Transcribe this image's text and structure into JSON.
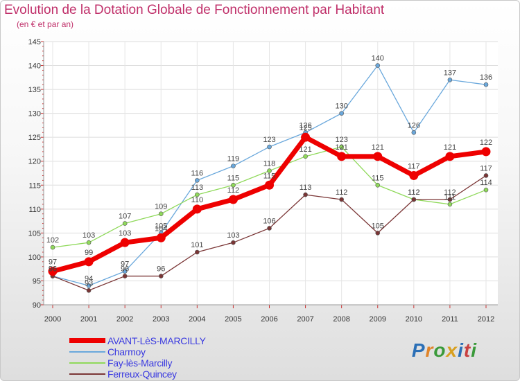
{
  "title": "Evolution de la Dotation Globale de Fonctionnement par Habitant",
  "subtitle": "(en € et par an)",
  "logo": {
    "p": "P",
    "r": "r",
    "o": "o",
    "x": "x",
    "i": "i",
    "t": "t",
    "i2": "i"
  },
  "colors": {
    "title": "#c0306a",
    "legend_text": "#3a3ae0"
  },
  "chart_data": {
    "type": "line",
    "title": "Evolution de la Dotation Globale de Fonctionnement par Habitant",
    "subtitle": "(en € et par an)",
    "xlabel": "",
    "ylabel": "",
    "x": [
      "2000",
      "2001",
      "2002",
      "2003",
      "2004",
      "2005",
      "2006",
      "2007",
      "2008",
      "2009",
      "2010",
      "2011",
      "2012"
    ],
    "ylim": [
      90,
      145
    ],
    "yticks": [
      90,
      95,
      100,
      105,
      110,
      115,
      120,
      125,
      130,
      135,
      140,
      145
    ],
    "grid": true,
    "legend_position": "bottom-left",
    "series": [
      {
        "name": "AVANT-LèS-MARCILLY",
        "color": "#ee0000",
        "emphasis": true,
        "values": [
          97,
          99,
          103,
          104,
          110,
          112,
          115,
          125,
          121,
          121,
          117,
          121,
          122
        ]
      },
      {
        "name": "Charmoy",
        "color": "#6aa8dc",
        "emphasis": false,
        "values": [
          96,
          94,
          97,
          105,
          116,
          119,
          123,
          126,
          130,
          140,
          126,
          137,
          136
        ]
      },
      {
        "name": "Fay-lès-Marcilly",
        "color": "#8fd95a",
        "emphasis": false,
        "values": [
          102,
          103,
          107,
          109,
          113,
          115,
          118,
          121,
          123,
          115,
          112,
          111,
          114
        ]
      },
      {
        "name": "Ferreux-Quincey",
        "color": "#7a3535",
        "emphasis": false,
        "values": [
          96,
          93,
          96,
          96,
          101,
          103,
          106,
          113,
          112,
          105,
          112,
          112,
          117
        ]
      }
    ]
  }
}
